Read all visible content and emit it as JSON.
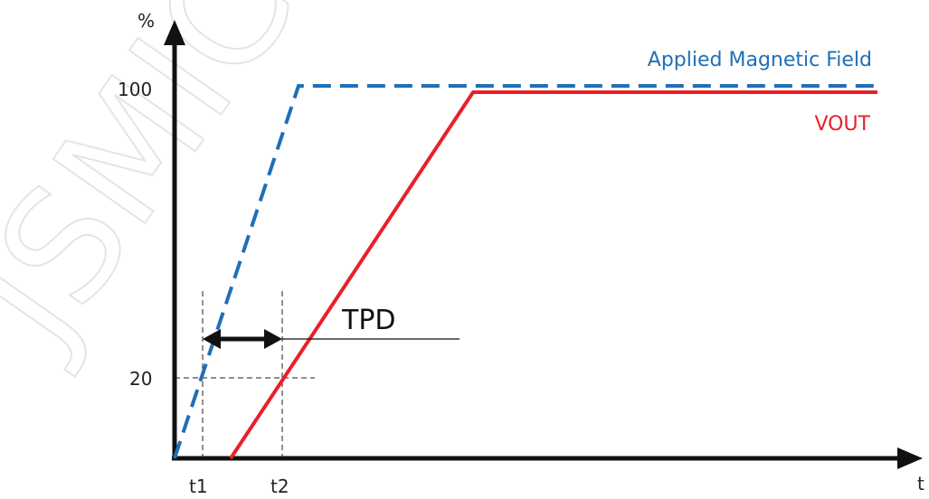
{
  "axes": {
    "y_unit_label": "%",
    "x_unit_label": "t",
    "y_ticks": [
      "100",
      "20"
    ],
    "x_ticks": [
      "t1",
      "t2"
    ]
  },
  "series": [
    {
      "key": "field",
      "name": "Applied Magnetic Field",
      "color": "#1F6FB8",
      "style": "dashed"
    },
    {
      "key": "vout",
      "name": "VOUT",
      "color": "#E8202A",
      "style": "solid"
    }
  ],
  "annotation": {
    "label": "TPD"
  },
  "watermark": "JSMICRO",
  "colors": {
    "axis": "#111111",
    "guide": "#222222",
    "watermark": "#dddddd"
  }
}
